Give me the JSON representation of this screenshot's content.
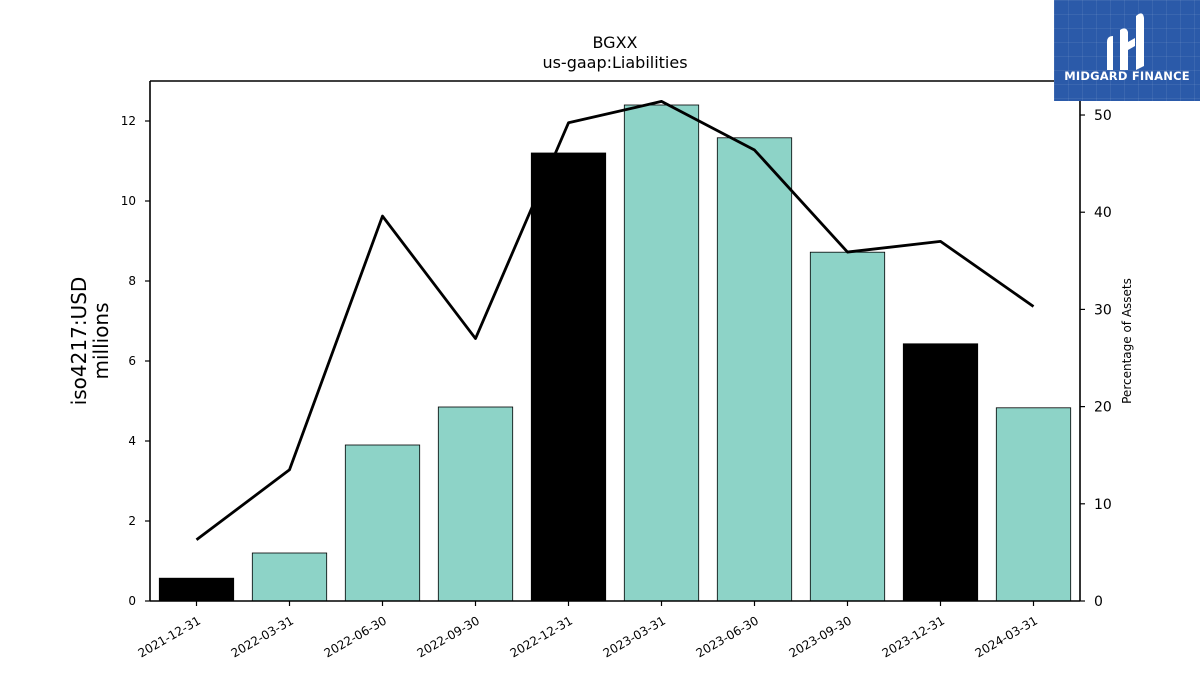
{
  "brand": {
    "name": "MIDGARD FINANCE",
    "color": "#2b5aa9"
  },
  "chart_data": {
    "type": "bar",
    "title": "BGXX",
    "subtitle": "us-gaap:Liabilities",
    "ylabel": "iso4217:USD\nmillions",
    "y2label": "Percentage of Assets",
    "xlabel": "",
    "categories": [
      "2021-12-31",
      "2022-03-31",
      "2022-06-30",
      "2022-09-30",
      "2022-12-31",
      "2023-03-31",
      "2023-06-30",
      "2023-09-30",
      "2023-12-31",
      "2024-03-31"
    ],
    "series": [
      {
        "type": "bar",
        "axis": "left",
        "values": [
          0.57,
          1.2,
          3.9,
          4.85,
          11.2,
          12.4,
          11.58,
          8.72,
          6.43,
          4.83
        ],
        "colors": [
          "#000000",
          "#8dd3c7",
          "#8dd3c7",
          "#8dd3c7",
          "#000000",
          "#8dd3c7",
          "#8dd3c7",
          "#8dd3c7",
          "#000000",
          "#8dd3c7"
        ]
      },
      {
        "type": "line",
        "axis": "right",
        "color": "#000000",
        "values": [
          6.3,
          13.5,
          39.6,
          27.0,
          49.2,
          51.4,
          46.4,
          35.9,
          37.0,
          30.3
        ]
      }
    ],
    "ylim": [
      0,
      13
    ],
    "yticks": [
      0,
      2,
      4,
      6,
      8,
      10,
      12
    ],
    "y2lim": [
      0,
      53.5
    ],
    "y2ticks": [
      0,
      10,
      20,
      30,
      40,
      50
    ],
    "grid": false,
    "legend": "none"
  }
}
